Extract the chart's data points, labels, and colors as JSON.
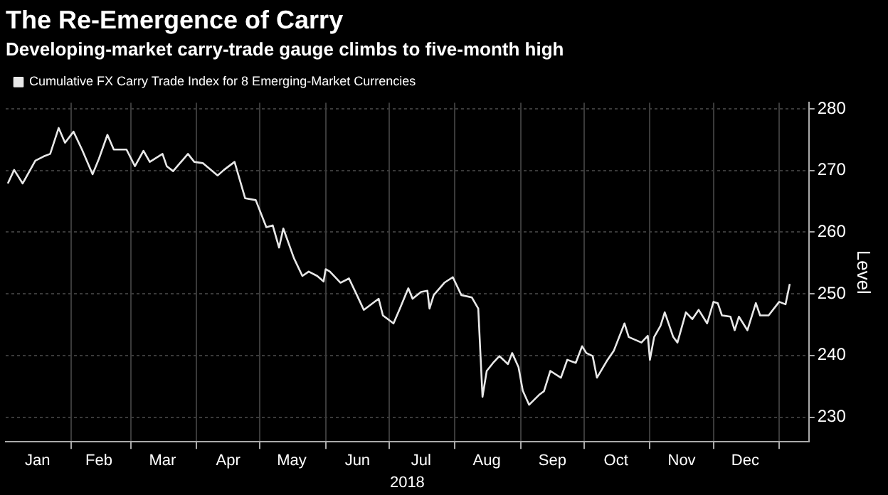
{
  "chart_data": {
    "type": "line",
    "title": "The Re-Emergence of Carry",
    "subtitle": "Developing-market carry-trade gauge climbs to five-month high",
    "xlabel": "2018",
    "ylabel": "Level",
    "x": [
      "2018-01-02",
      "2018-01-05",
      "2018-01-09",
      "2018-01-15",
      "2018-01-19",
      "2018-01-22",
      "2018-01-26",
      "2018-01-29",
      "2018-02-02",
      "2018-02-06",
      "2018-02-11",
      "2018-02-14",
      "2018-02-18",
      "2018-02-21",
      "2018-02-27",
      "2018-03-03",
      "2018-03-07",
      "2018-03-10",
      "2018-03-16",
      "2018-03-18",
      "2018-03-21",
      "2018-03-28",
      "2018-03-31",
      "2018-04-04",
      "2018-04-11",
      "2018-04-14",
      "2018-04-19",
      "2018-04-24",
      "2018-04-29",
      "2018-05-04",
      "2018-05-07",
      "2018-05-10",
      "2018-05-12",
      "2018-05-17",
      "2018-05-21",
      "2018-05-24",
      "2018-05-28",
      "2018-05-31",
      "2018-06-01",
      "2018-06-03",
      "2018-06-08",
      "2018-06-12",
      "2018-06-16",
      "2018-06-19",
      "2018-06-24",
      "2018-06-26",
      "2018-06-28",
      "2018-07-03",
      "2018-07-06",
      "2018-07-10",
      "2018-07-12",
      "2018-07-16",
      "2018-07-19",
      "2018-07-20",
      "2018-07-22",
      "2018-07-27",
      "2018-07-31",
      "2018-08-04",
      "2018-08-09",
      "2018-08-12",
      "2018-08-14",
      "2018-08-16",
      "2018-08-19",
      "2018-08-22",
      "2018-08-26",
      "2018-08-28",
      "2018-08-31",
      "2018-09-02",
      "2018-09-05",
      "2018-09-10",
      "2018-09-12",
      "2018-09-15",
      "2018-09-20",
      "2018-09-23",
      "2018-09-27",
      "2018-09-30",
      "2018-10-02",
      "2018-10-05",
      "2018-10-07",
      "2018-10-12",
      "2018-10-15",
      "2018-10-20",
      "2018-10-22",
      "2018-10-28",
      "2018-10-31",
      "2018-11-01",
      "2018-11-03",
      "2018-11-06",
      "2018-11-08",
      "2018-11-12",
      "2018-11-14",
      "2018-11-18",
      "2018-11-21",
      "2018-11-24",
      "2018-11-28",
      "2018-12-01",
      "2018-12-03",
      "2018-12-05",
      "2018-12-09",
      "2018-12-11",
      "2018-12-13",
      "2018-12-17",
      "2018-12-21",
      "2018-12-23",
      "2018-12-27",
      "2019-01-01",
      "2019-01-04",
      "2019-01-06"
    ],
    "series": [
      {
        "name": "Cumulative FX Carry Trade Index for 8 Emerging-Market Currencies",
        "color": "#e8e8e8",
        "values": [
          267.9,
          270.1,
          267.9,
          271.6,
          272.3,
          272.7,
          276.9,
          274.5,
          276.3,
          273.4,
          269.4,
          271.9,
          275.8,
          273.4,
          273.4,
          270.7,
          273.2,
          271.4,
          272.7,
          270.7,
          269.9,
          272.7,
          271.4,
          271.2,
          269.2,
          270.1,
          271.4,
          265.5,
          265.2,
          260.8,
          261.1,
          257.5,
          260.6,
          255.8,
          252.9,
          253.6,
          252.9,
          252.0,
          254.0,
          253.6,
          251.8,
          252.5,
          249.6,
          247.4,
          248.7,
          249.2,
          246.5,
          245.2,
          247.6,
          250.9,
          249.2,
          250.3,
          250.5,
          247.6,
          249.8,
          251.8,
          252.7,
          249.8,
          249.4,
          247.6,
          233.3,
          237.5,
          238.8,
          239.9,
          238.6,
          240.4,
          238.1,
          234.3,
          232.0,
          233.7,
          234.2,
          237.5,
          236.4,
          239.3,
          238.8,
          241.5,
          240.4,
          239.9,
          236.4,
          239.3,
          240.8,
          245.2,
          243.0,
          242.1,
          243.2,
          239.3,
          243.0,
          244.8,
          247.0,
          243.0,
          242.1,
          247.0,
          245.9,
          247.4,
          245.2,
          248.7,
          248.5,
          246.5,
          246.3,
          244.1,
          246.3,
          244.1,
          248.5,
          246.5,
          246.5,
          248.7,
          248.3,
          251.6
        ]
      }
    ],
    "xlim": [
      "2018-01-01",
      "2019-01-15"
    ],
    "xticks": [
      {
        "value": "2018-01-16",
        "label": "Jan"
      },
      {
        "value": "2018-02-01",
        "label": null
      },
      {
        "value": "2018-02-14",
        "label": "Feb"
      },
      {
        "value": "2018-03-01",
        "label": null
      },
      {
        "value": "2018-03-16",
        "label": "Mar"
      },
      {
        "value": "2018-04-01",
        "label": null
      },
      {
        "value": "2018-04-16",
        "label": "Apr"
      },
      {
        "value": "2018-05-01",
        "label": null
      },
      {
        "value": "2018-05-16",
        "label": "May"
      },
      {
        "value": "2018-06-01",
        "label": null
      },
      {
        "value": "2018-06-16",
        "label": "Jun"
      },
      {
        "value": "2018-07-01",
        "label": null
      },
      {
        "value": "2018-07-16",
        "label": "Jul"
      },
      {
        "value": "2018-08-01",
        "label": null
      },
      {
        "value": "2018-08-16",
        "label": "Aug"
      },
      {
        "value": "2018-09-01",
        "label": null
      },
      {
        "value": "2018-09-16",
        "label": "Sep"
      },
      {
        "value": "2018-10-01",
        "label": null
      },
      {
        "value": "2018-10-16",
        "label": "Oct"
      },
      {
        "value": "2018-11-01",
        "label": null
      },
      {
        "value": "2018-11-16",
        "label": "Nov"
      },
      {
        "value": "2018-12-01",
        "label": null
      },
      {
        "value": "2018-12-16",
        "label": "Dec"
      },
      {
        "value": "2019-01-01",
        "label": null
      }
    ],
    "ylim": [
      226,
      281
    ],
    "yticks": [
      230,
      240,
      250,
      260,
      270,
      280
    ],
    "grid": true,
    "legend": "top left",
    "marker": "none",
    "line_style": "solid"
  }
}
